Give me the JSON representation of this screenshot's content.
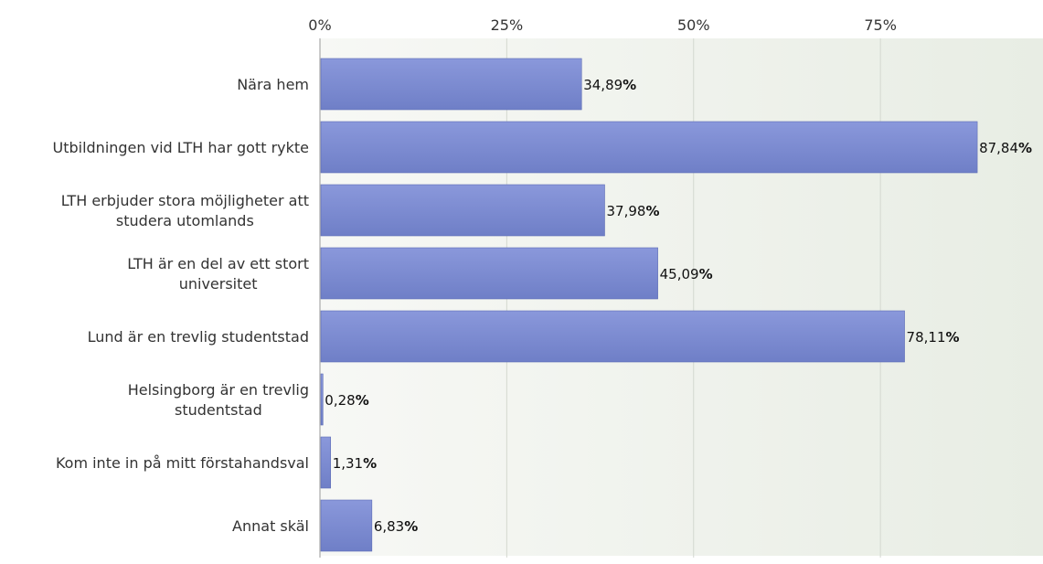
{
  "chart_data": {
    "type": "bar",
    "orientation": "horizontal",
    "title": "",
    "xlabel": "",
    "ylabel": "",
    "xlim": [
      0,
      100
    ],
    "xticks": [
      0,
      25,
      50,
      75
    ],
    "xtick_labels": [
      "0%",
      "25%",
      "50%",
      "75%"
    ],
    "axis_position": "top",
    "grid": true,
    "legend": "none",
    "categories": [
      [
        "Nära hem"
      ],
      [
        "Utbildningen vid LTH har gott rykte"
      ],
      [
        "LTH erbjuder stora möjligheter att",
        "studera utomlands"
      ],
      [
        "LTH är en del av ett stort",
        "universitet"
      ],
      [
        "Lund är en trevlig studentstad"
      ],
      [
        "Helsingborg är en trevlig",
        "studentstad"
      ],
      [
        "Kom inte in på mitt förstahandsval"
      ],
      [
        "Annat skäl"
      ]
    ],
    "values": [
      34.89,
      87.84,
      37.98,
      45.09,
      78.11,
      0.28,
      1.31,
      6.83
    ],
    "data_labels": [
      "34,89%",
      "87,84%",
      "37,98%",
      "45,09%",
      "78,11%",
      "0,28%",
      "1,31%",
      "6,83%"
    ],
    "colors": {
      "bar_top": "#8a98db",
      "bar_bottom": "#6f7fc7",
      "bar_edge": "#5d6cb5",
      "plot_bg_left": "#f7f8f5",
      "plot_bg_right": "#e8ede4",
      "grid": "#d4d8d0",
      "axis": "#999999"
    }
  }
}
